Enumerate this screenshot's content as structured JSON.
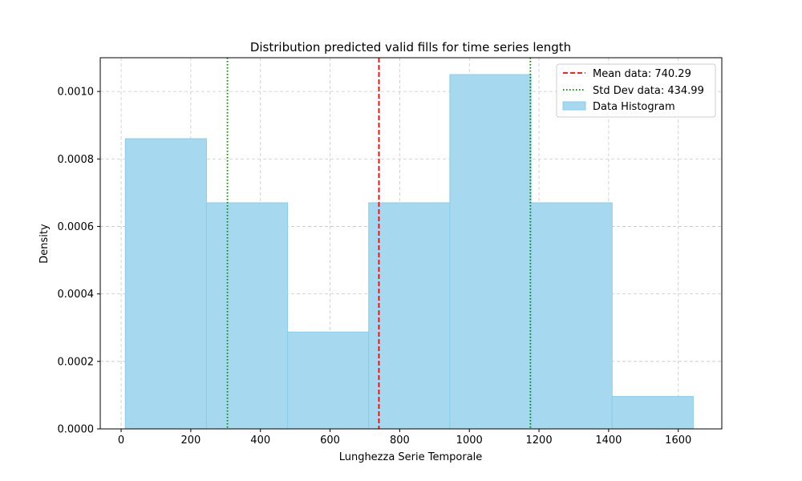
{
  "chart_data": {
    "type": "bar",
    "title": "Distribution predicted valid fills for time series length",
    "xlabel": "Lunghezza Serie Temporale",
    "ylabel": "Density",
    "xlim": [
      -60,
      1725
    ],
    "ylim": [
      0,
      0.0011
    ],
    "xticks": [
      0,
      200,
      400,
      600,
      800,
      1000,
      1200,
      1400,
      1600
    ],
    "yticks": [
      0.0,
      0.0002,
      0.0004,
      0.0006,
      0.0008,
      0.001
    ],
    "ytick_labels": [
      "0.0000",
      "0.0002",
      "0.0004",
      "0.0006",
      "0.0008",
      "0.0010"
    ],
    "grid": true,
    "legend_position": "top-right",
    "bins": [
      {
        "x0": 12,
        "x1": 245,
        "density": 0.00086
      },
      {
        "x0": 245,
        "x1": 478,
        "density": 0.00067
      },
      {
        "x0": 478,
        "x1": 711,
        "density": 0.000287
      },
      {
        "x0": 711,
        "x1": 944,
        "density": 0.00067
      },
      {
        "x0": 944,
        "x1": 1177,
        "density": 0.00105
      },
      {
        "x0": 1177,
        "x1": 1410,
        "density": 0.00067
      },
      {
        "x0": 1410,
        "x1": 1643,
        "density": 9.6e-05
      }
    ],
    "mean": {
      "value": 740.29,
      "label": "Mean data: 740.29",
      "color": "#ff0000"
    },
    "std": {
      "lower": 305.3,
      "upper": 1175.28,
      "label": "Std Dev data: 434.99",
      "color": "#008000"
    },
    "histogram": {
      "label": "Data Histogram",
      "fill": "#a6d9f0",
      "edge": "#87ceeb"
    }
  }
}
